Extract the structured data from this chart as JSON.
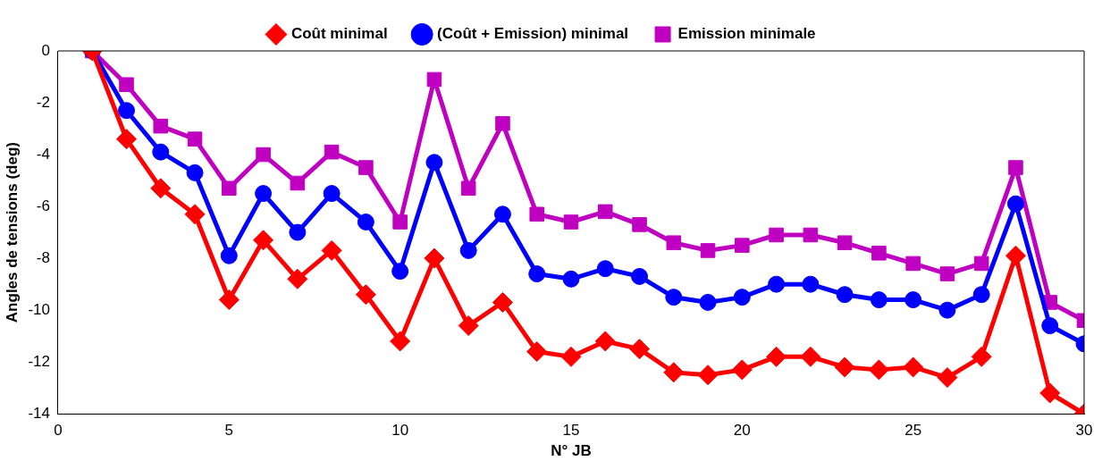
{
  "chart_data": {
    "type": "line",
    "xlabel": "N° JB",
    "ylabel": "Angles de tensions (deg)",
    "x": [
      1,
      2,
      3,
      4,
      5,
      6,
      7,
      8,
      9,
      10,
      11,
      12,
      13,
      14,
      15,
      16,
      17,
      18,
      19,
      20,
      21,
      22,
      23,
      24,
      25,
      26,
      27,
      28,
      29,
      30
    ],
    "xlim": [
      0,
      30
    ],
    "xticks": [
      0,
      5,
      10,
      15,
      20,
      25,
      30
    ],
    "ylim": [
      -14,
      0
    ],
    "yticks": [
      -14,
      -12,
      -10,
      -8,
      -6,
      -4,
      -2,
      0
    ],
    "grid": false,
    "legend": "top",
    "line_style": "solid",
    "series": [
      {
        "name": "Coût minimal",
        "color": "#ff0000",
        "marker": "diamond",
        "values": [
          0,
          -3.4,
          -5.3,
          -6.3,
          -9.6,
          -7.3,
          -8.8,
          -7.7,
          -9.4,
          -11.2,
          -8.0,
          -10.6,
          -9.7,
          -11.6,
          -11.8,
          -11.2,
          -11.5,
          -12.4,
          -12.5,
          -12.3,
          -11.8,
          -11.8,
          -12.2,
          -12.3,
          -12.2,
          -12.6,
          -11.8,
          -7.9,
          -13.2,
          -14.0
        ]
      },
      {
        "name": "(Coût + Emission) minimal",
        "color": "#0000ff",
        "marker": "circle",
        "values": [
          0,
          -2.3,
          -3.9,
          -4.7,
          -7.9,
          -5.5,
          -7.0,
          -5.5,
          -6.6,
          -8.5,
          -4.3,
          -7.7,
          -6.3,
          -8.6,
          -8.8,
          -8.4,
          -8.7,
          -9.5,
          -9.7,
          -9.5,
          -9.0,
          -9.0,
          -9.4,
          -9.6,
          -9.6,
          -10.0,
          -9.4,
          -5.9,
          -10.6,
          -11.3
        ]
      },
      {
        "name": "Emission minimale",
        "color": "#c000c0",
        "marker": "square",
        "values": [
          0,
          -1.3,
          -2.9,
          -3.4,
          -5.3,
          -4.0,
          -5.1,
          -3.9,
          -4.5,
          -6.6,
          -1.1,
          -5.3,
          -2.8,
          -6.3,
          -6.6,
          -6.2,
          -6.7,
          -7.4,
          -7.7,
          -7.5,
          -7.1,
          -7.1,
          -7.4,
          -7.8,
          -8.2,
          -8.6,
          -8.2,
          -4.5,
          -9.7,
          -10.4
        ]
      }
    ]
  }
}
